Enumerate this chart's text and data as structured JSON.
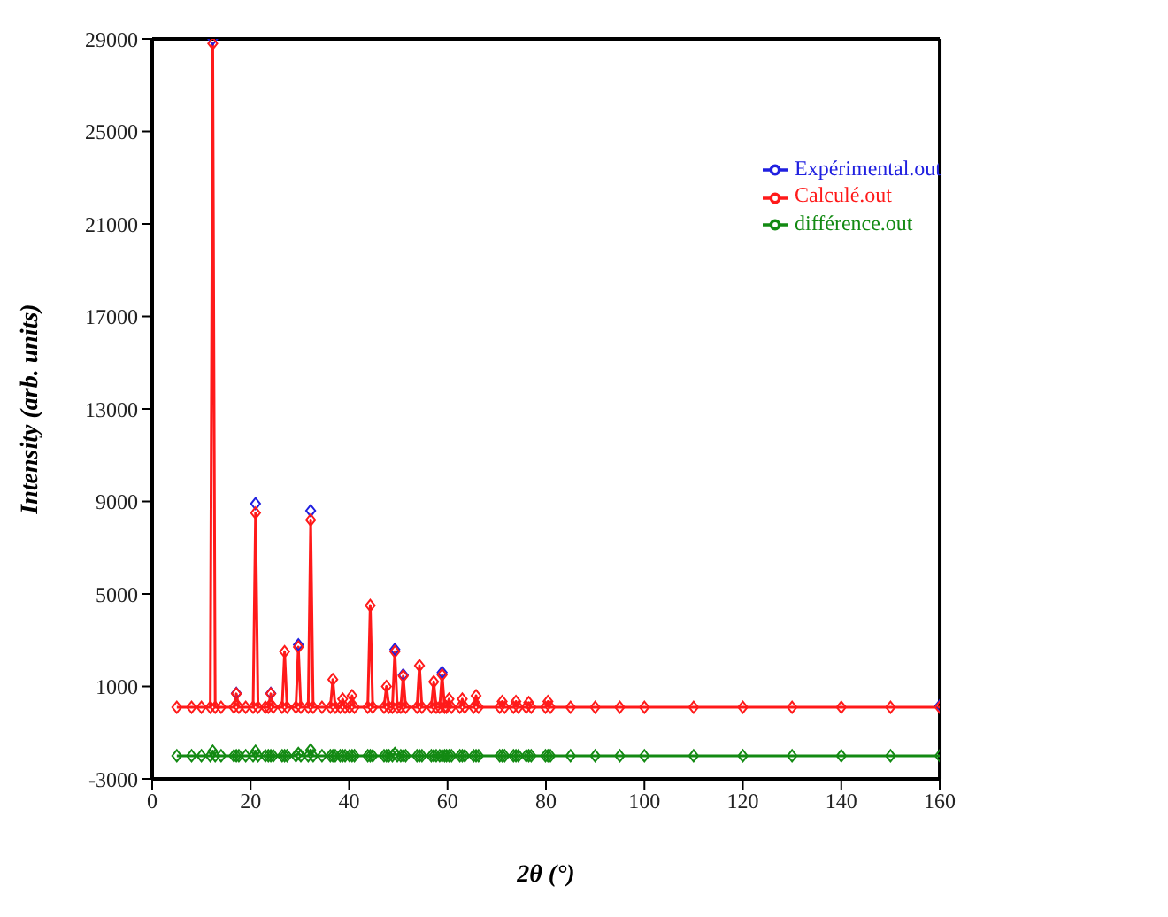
{
  "chart_data": {
    "type": "line",
    "xlabel": "2θ (°)",
    "ylabel": "Intensity (arb. units)",
    "x": [
      5,
      8,
      10,
      11.8,
      12.3,
      12.8,
      14,
      16.6,
      17.1,
      17.6,
      19,
      20.5,
      21,
      21.5,
      23,
      23.6,
      24.1,
      24.6,
      26.4,
      26.9,
      27.4,
      29.2,
      29.7,
      30.2,
      31.7,
      32.2,
      32.7,
      34.5,
      36.2,
      36.7,
      37.2,
      38.2,
      38.7,
      39.2,
      40.1,
      40.6,
      41.1,
      43.8,
      44.3,
      44.8,
      47.1,
      47.6,
      48.1,
      48.8,
      49.3,
      49.8,
      50.5,
      51,
      51.5,
      53.8,
      54.3,
      54.8,
      56.7,
      57.2,
      57.7,
      58.4,
      58.9,
      59.4,
      59.8,
      60.3,
      60.8,
      62.5,
      63,
      63.5,
      65.3,
      65.8,
      66.3,
      70.6,
      71.1,
      71.6,
      73.4,
      73.9,
      74.4,
      76,
      76.5,
      77,
      79.9,
      80.4,
      80.9,
      85,
      90,
      95,
      100,
      110,
      120,
      130,
      140,
      150,
      160
    ],
    "series": [
      {
        "name": "Expérimental.out",
        "color": "#2020e0",
        "values": [
          null,
          null,
          null,
          null,
          29000,
          null,
          null,
          null,
          700,
          null,
          null,
          null,
          8900,
          null,
          null,
          null,
          700,
          null,
          null,
          null,
          null,
          null,
          2800,
          null,
          null,
          8600,
          null,
          null,
          null,
          null,
          null,
          null,
          null,
          null,
          null,
          null,
          null,
          null,
          null,
          null,
          null,
          null,
          null,
          null,
          2600,
          null,
          null,
          1500,
          null,
          null,
          null,
          null,
          null,
          null,
          null,
          null,
          1600,
          null,
          null,
          null,
          null,
          null,
          null,
          null,
          null,
          null,
          null,
          null,
          null,
          null,
          null,
          null,
          null,
          null,
          null,
          null,
          null,
          null,
          null,
          null,
          null,
          null,
          null,
          null,
          null,
          null,
          null,
          null,
          160
        ]
      },
      {
        "name": "Calculé.out",
        "color": "#ff1a1a",
        "values": [
          100,
          100,
          100,
          100,
          28800,
          100,
          100,
          100,
          680,
          100,
          100,
          100,
          8500,
          100,
          100,
          100,
          680,
          100,
          100,
          2500,
          100,
          100,
          2700,
          100,
          100,
          8200,
          100,
          100,
          100,
          1300,
          100,
          100,
          450,
          100,
          100,
          600,
          100,
          100,
          4500,
          100,
          100,
          1000,
          100,
          100,
          2500,
          100,
          100,
          1450,
          100,
          100,
          1900,
          100,
          100,
          1200,
          100,
          100,
          1500,
          100,
          100,
          450,
          100,
          100,
          450,
          100,
          100,
          600,
          100,
          100,
          350,
          100,
          100,
          350,
          100,
          100,
          300,
          100,
          100,
          350,
          100,
          100,
          100,
          100,
          100,
          100,
          100,
          100,
          100,
          100,
          100
        ]
      },
      {
        "name": "différence.out",
        "color": "#138a13",
        "values": [
          -2000,
          -2000,
          -2000,
          -2000,
          -1800,
          -2000,
          -2000,
          -2000,
          -2000,
          -2000,
          -2000,
          -2000,
          -1800,
          -2000,
          -2000,
          -2000,
          -2000,
          -2000,
          -2000,
          -2000,
          -2000,
          -2000,
          -1900,
          -2000,
          -2000,
          -1750,
          -2000,
          -2000,
          -2000,
          -2000,
          -2000,
          -2000,
          -2000,
          -2000,
          -2000,
          -2000,
          -2000,
          -2000,
          -2000,
          -2000,
          -2000,
          -2000,
          -2000,
          -2000,
          -1900,
          -2000,
          -2000,
          -2000,
          -2000,
          -2000,
          -2000,
          -2000,
          -2000,
          -2000,
          -2000,
          -2000,
          -2000,
          -2000,
          -2000,
          -2000,
          -2000,
          -2000,
          -2000,
          -2000,
          -2000,
          -2000,
          -2000,
          -2000,
          -2000,
          -2000,
          -2000,
          -2000,
          -2000,
          -2000,
          -2000,
          -2000,
          -2000,
          -2000,
          -2000,
          -2000,
          -2000,
          -2000,
          -2000,
          -2000,
          -2000,
          -2000,
          -2000,
          -2000,
          -2000
        ]
      }
    ],
    "xlim": [
      0,
      160
    ],
    "xticks": [
      0,
      20,
      40,
      60,
      80,
      100,
      120,
      140,
      160
    ],
    "ylim": [
      -3000,
      29000
    ],
    "yticks": [
      -3000,
      1000,
      5000,
      9000,
      13000,
      17000,
      21000,
      25000,
      29000
    ],
    "grid": false,
    "legend": "top right",
    "marker": "diamond"
  }
}
